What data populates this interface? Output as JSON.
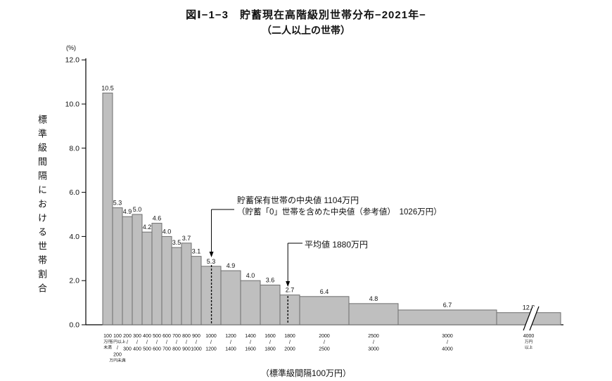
{
  "title": {
    "line1": "図Ⅰ−1−3　貯蓄現在高階級別世帯分布−2021年−",
    "line2": "（二人以上の世帯）"
  },
  "chart_data": {
    "type": "bar",
    "title": "図Ⅰ−1−3 貯蓄現在高階級別世帯分布−2021年−（二人以上の世帯）",
    "y_axis": {
      "unit": "(%)",
      "title": "標準級間隔における世帯割合",
      "ticks": [
        0,
        2,
        4,
        6,
        8,
        10,
        12
      ],
      "max": 12,
      "grid": false
    },
    "x_axis": {
      "note": "（標準級間隔100万円）"
    },
    "categories": [
      "100万円未満",
      "100万円以上200万円未満",
      "200〜300",
      "300〜400",
      "400〜500",
      "500〜600",
      "600〜700",
      "700〜800",
      "800〜900",
      "900〜1000",
      "1000〜1200",
      "1200〜1400",
      "1400〜1600",
      "1600〜1800",
      "1800〜2000",
      "2000〜2500",
      "2500〜3000",
      "3000〜4000",
      "4000万円以上"
    ],
    "values": [
      10.5,
      5.3,
      4.9,
      5.0,
      4.2,
      4.6,
      4.0,
      3.5,
      3.7,
      3.1,
      5.3,
      4.9,
      4.0,
      3.6,
      2.7,
      6.4,
      4.8,
      6.7,
      12.8
    ],
    "bars": [
      {
        "range": "100万円未満",
        "value": 10.5,
        "width_units": 1,
        "label_lines": [
          "100",
          "万円",
          "未満"
        ]
      },
      {
        "range": "100万円以上200万円未満",
        "value": 5.3,
        "width_units": 1,
        "label_lines": [
          "100",
          "万円以上",
          "/",
          "200",
          "万円未満"
        ]
      },
      {
        "range": "200〜300",
        "value": 4.9,
        "width_units": 1,
        "label_lines": [
          "200",
          "/",
          "300"
        ]
      },
      {
        "range": "300〜400",
        "value": 5.0,
        "width_units": 1,
        "label_lines": [
          "300",
          "/",
          "400"
        ]
      },
      {
        "range": "400〜500",
        "value": 4.2,
        "width_units": 1,
        "label_lines": [
          "400",
          "/",
          "500"
        ]
      },
      {
        "range": "500〜600",
        "value": 4.6,
        "width_units": 1,
        "label_lines": [
          "500",
          "/",
          "600"
        ]
      },
      {
        "range": "600〜700",
        "value": 4.0,
        "width_units": 1,
        "label_lines": [
          "600",
          "/",
          "700"
        ]
      },
      {
        "range": "700〜800",
        "value": 3.5,
        "width_units": 1,
        "label_lines": [
          "700",
          "/",
          "800"
        ]
      },
      {
        "range": "800〜900",
        "value": 3.7,
        "width_units": 1,
        "label_lines": [
          "800",
          "/",
          "900"
        ]
      },
      {
        "range": "900〜1000",
        "value": 3.1,
        "width_units": 1,
        "label_lines": [
          "900",
          "/",
          "1000"
        ]
      },
      {
        "range": "1000〜1200",
        "value": 5.3,
        "width_units": 2,
        "label_lines": [
          "1000",
          "/",
          "1200"
        ]
      },
      {
        "range": "1200〜1400",
        "value": 4.9,
        "width_units": 2,
        "label_lines": [
          "1200",
          "/",
          "1400"
        ]
      },
      {
        "range": "1400〜1600",
        "value": 4.0,
        "width_units": 2,
        "label_lines": [
          "1400",
          "/",
          "1600"
        ]
      },
      {
        "range": "1600〜1800",
        "value": 3.6,
        "width_units": 2,
        "label_lines": [
          "1600",
          "/",
          "1800"
        ]
      },
      {
        "range": "1800〜2000",
        "value": 2.7,
        "width_units": 2,
        "label_lines": [
          "1800",
          "/",
          "2000"
        ]
      },
      {
        "range": "2000〜2500",
        "value": 6.4,
        "width_units": 5,
        "label_lines": [
          "2000",
          "/",
          "2500"
        ]
      },
      {
        "range": "2500〜3000",
        "value": 4.8,
        "width_units": 5,
        "label_lines": [
          "2500",
          "/",
          "3000"
        ]
      },
      {
        "range": "3000〜4000",
        "value": 6.7,
        "width_units": 10,
        "label_lines": [
          "3000",
          "/",
          "4000"
        ]
      },
      {
        "range": "4000万円以上",
        "value": 12.8,
        "width_units": 6.5,
        "drawn_height": 0.55,
        "open_ended": true,
        "label_lines": [
          "4000",
          "万円",
          "以上"
        ]
      }
    ],
    "annotations": {
      "median": {
        "line1": "貯蓄保有世帯の中央値 1104万円",
        "line2": "（貯蓄「0」世帯を含めた中央値（参考値）　1026万円）",
        "value_manen": 1104
      },
      "mean": {
        "label": "平均値 1880万円",
        "value_manen": 1880
      }
    },
    "colors": {
      "bar_fill": "#bfbfbf",
      "bar_stroke": "#6e6e6e",
      "axis": "#000000"
    }
  }
}
